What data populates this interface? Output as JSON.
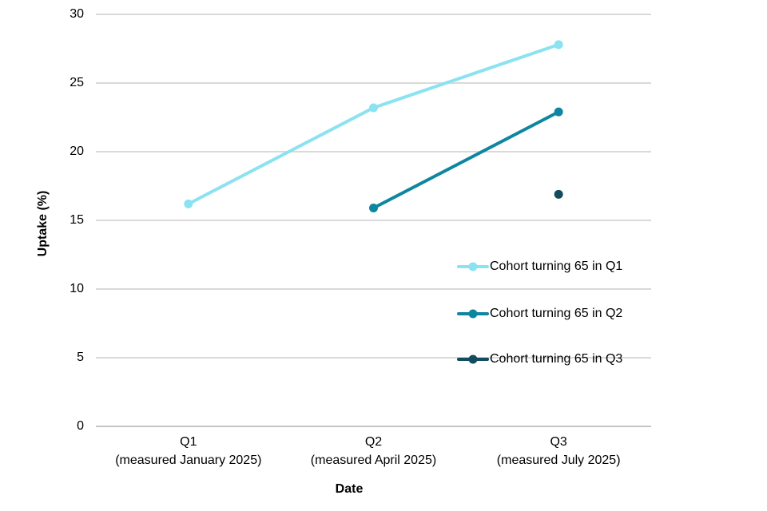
{
  "chart_data": {
    "type": "line",
    "title": "",
    "xlabel": "Date",
    "ylabel": "Uptake (%)",
    "x_categories": [
      {
        "label": "Q1",
        "sublabel": "(measured January 2025)"
      },
      {
        "label": "Q2",
        "sublabel": "(measured April 2025)"
      },
      {
        "label": "Q3",
        "sublabel": "(measured July 2025)"
      }
    ],
    "yticks": [
      0,
      5,
      10,
      15,
      20,
      25,
      30
    ],
    "ylim": [
      0,
      30
    ],
    "grid": "horizontal gridlines only",
    "legend_position": "inside plot area, right side, stacked vertically",
    "series": [
      {
        "name": "Cohort turning 65 in Q1",
        "color": "#8BE2F0",
        "values": [
          16.2,
          23.2,
          27.8
        ]
      },
      {
        "name": "Cohort turning 65 in Q2",
        "color": "#0E86A0",
        "values": [
          null,
          15.9,
          22.9
        ]
      },
      {
        "name": "Cohort turning 65 in Q3",
        "color": "#124C5E",
        "values": [
          null,
          null,
          16.9
        ]
      }
    ]
  },
  "colors": {
    "background": "#FFFFFF",
    "gridline": "#D9D9D9",
    "baseline": "#C6C6C6",
    "text": "#000000"
  }
}
